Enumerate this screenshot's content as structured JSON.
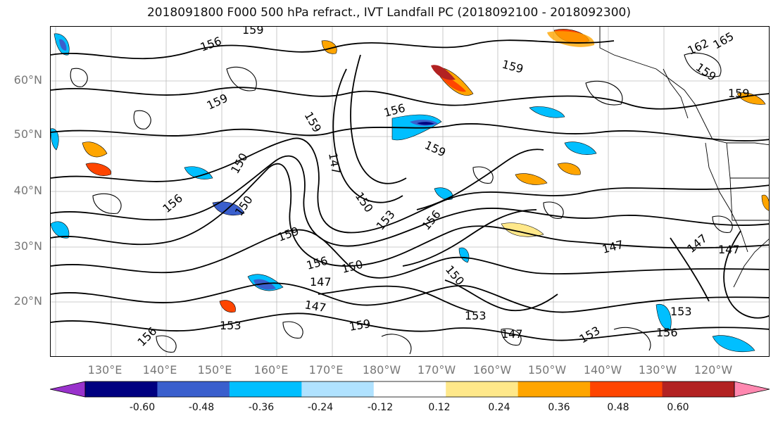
{
  "title": "2018091800 F000 500 hPa refract., IVT Landfall PC (2018092100 - 2018092300)",
  "map": {
    "lat_labels": [
      "60°N",
      "50°N",
      "40°N",
      "30°N",
      "20°N"
    ],
    "lon_labels": [
      "130°E",
      "140°E",
      "150°E",
      "160°E",
      "170°E",
      "180°W",
      "170°W",
      "160°W",
      "150°W",
      "140°W",
      "130°W",
      "120°W"
    ],
    "contour_labels": [
      "159",
      "156",
      "159",
      "159",
      "156",
      "159",
      "150",
      "147",
      "156",
      "150",
      "153",
      "159",
      "150",
      "156",
      "156",
      "147",
      "153",
      "150",
      "150",
      "153",
      "147",
      "159",
      "156",
      "147",
      "153",
      "147",
      "153",
      "156",
      "159",
      "162",
      "165",
      "159",
      "159",
      "147",
      "147"
    ]
  },
  "colorbar": {
    "tick_labels": [
      "-0.60",
      "-0.48",
      "-0.36",
      "-0.24",
      "-0.12",
      "0.12",
      "0.24",
      "0.36",
      "0.48",
      "0.60"
    ],
    "colors": [
      "#9932cc",
      "#000080",
      "#3a5fcd",
      "#00bfff",
      "#b0e2ff",
      "#ffffff",
      "#ffe88a",
      "#ffa500",
      "#ff4500",
      "#b22222",
      "#ff88b0"
    ]
  }
}
